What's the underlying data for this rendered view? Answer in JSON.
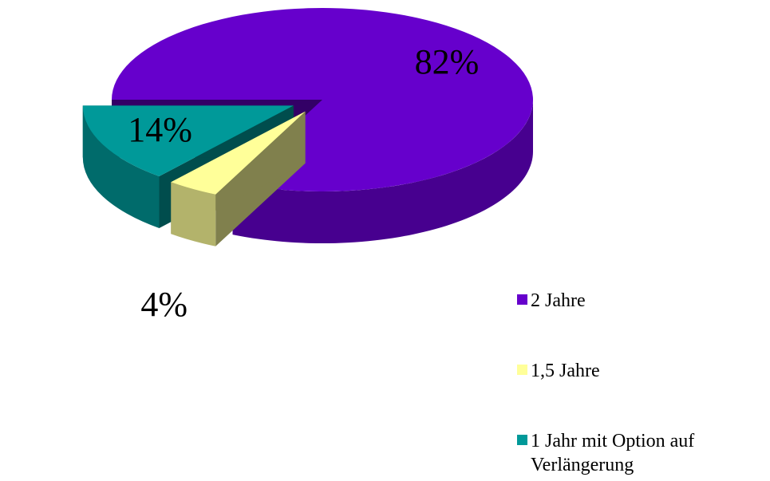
{
  "chart_data": {
    "type": "pie3d",
    "categories": [
      "2 Jahre",
      "1,5 Jahre",
      "1 Jahr mit Option auf Verlängerung"
    ],
    "values": [
      82,
      4,
      14
    ],
    "value_labels": [
      "82%",
      "4%",
      "14%"
    ],
    "colors": [
      "#6600cc",
      "#ffff99",
      "#009999"
    ],
    "legend": "right"
  }
}
